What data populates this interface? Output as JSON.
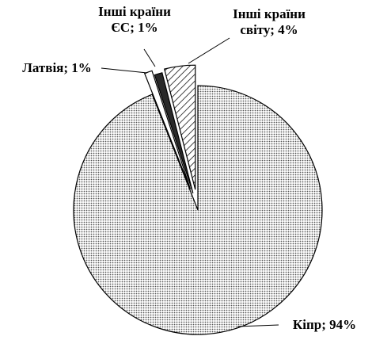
{
  "chart_data": {
    "type": "pie",
    "values": [
      94,
      1,
      1,
      4
    ],
    "value_labels": [
      "Кіпр; 94%",
      "Латвія; 1%",
      "Інші країни ЄС; 1%",
      "Інші країни світу; 4%"
    ],
    "colors": [
      "#b8b8b8",
      "#ffffff",
      "#2a2a2a",
      "#ffffff"
    ]
  }
}
